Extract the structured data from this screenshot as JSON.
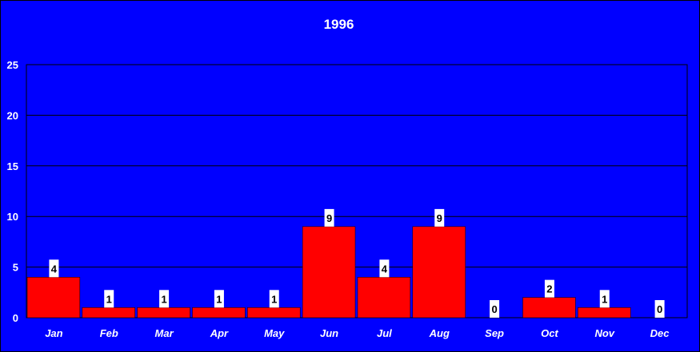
{
  "chart_data": {
    "type": "bar",
    "title": "1996",
    "categories": [
      "Jan",
      "Feb",
      "Mar",
      "Apr",
      "May",
      "Jun",
      "Jul",
      "Aug",
      "Sep",
      "Oct",
      "Nov",
      "Dec"
    ],
    "values": [
      4,
      1,
      1,
      1,
      1,
      9,
      4,
      9,
      0,
      2,
      1,
      0
    ],
    "ylim": [
      0,
      25
    ],
    "yticks": [
      0,
      5,
      10,
      15,
      20,
      25
    ],
    "grid": true,
    "legend": "none",
    "data_labels": true,
    "xlabel": "",
    "ylabel": ""
  },
  "colors": {
    "background": "#0000ff",
    "bar": "#ff0000",
    "gridline": "#000000",
    "text": "#ffffff",
    "label_box": "#ffffff"
  }
}
